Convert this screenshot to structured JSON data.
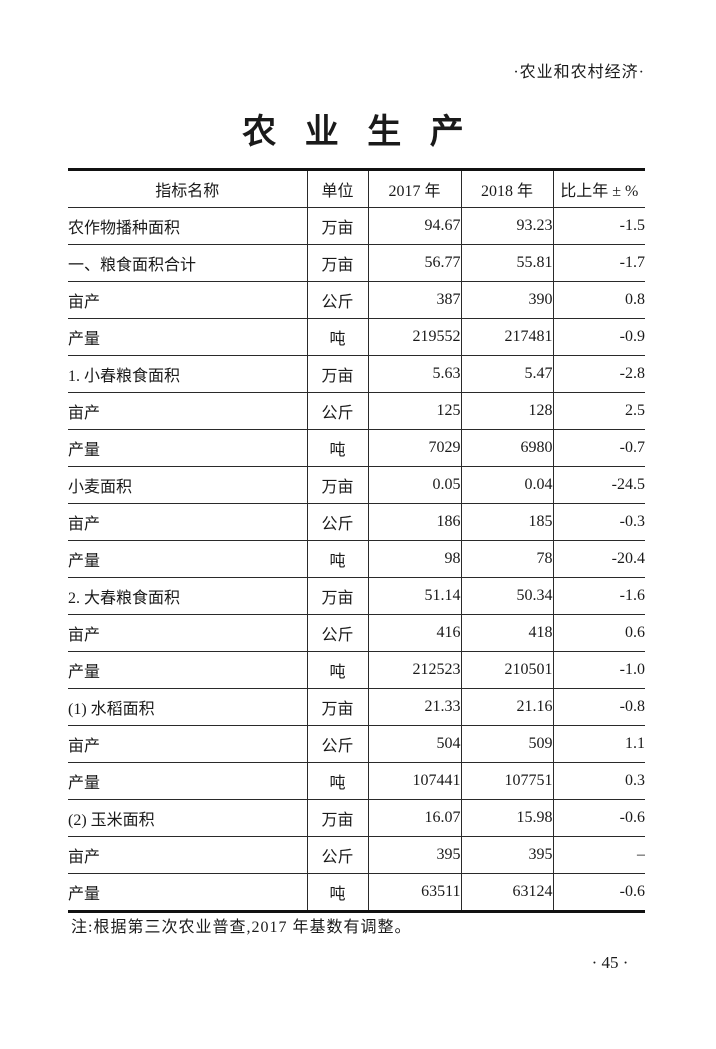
{
  "header": {
    "section_label": "·农业和农村经济·"
  },
  "title": "农 业 生 产",
  "table": {
    "columns": [
      "指标名称",
      "单位",
      "2017 年",
      "2018 年",
      "比上年 ± %"
    ],
    "rows": [
      {
        "indicator": "农作物播种面积",
        "indent": 0,
        "unit": "万亩",
        "y2017": "94.67",
        "y2018": "93.23",
        "change": "-1.5"
      },
      {
        "indicator": "一、粮食面积合计",
        "indent": 0,
        "unit": "万亩",
        "y2017": "56.77",
        "y2018": "55.81",
        "change": "-1.7"
      },
      {
        "indicator": "亩产",
        "indent": 2,
        "unit": "公斤",
        "y2017": "387",
        "y2018": "390",
        "change": "0.8"
      },
      {
        "indicator": "产量",
        "indent": 2,
        "unit": "吨",
        "y2017": "219552",
        "y2018": "217481",
        "change": "-0.9"
      },
      {
        "indicator": "1. 小春粮食面积",
        "indent": 1,
        "unit": "万亩",
        "y2017": "5.63",
        "y2018": "5.47",
        "change": "-2.8"
      },
      {
        "indicator": "亩产",
        "indent": 2,
        "unit": "公斤",
        "y2017": "125",
        "y2018": "128",
        "change": "2.5"
      },
      {
        "indicator": "产量",
        "indent": 2,
        "unit": "吨",
        "y2017": "7029",
        "y2018": "6980",
        "change": "-0.7"
      },
      {
        "indicator": "小麦面积",
        "indent": 3,
        "unit": "万亩",
        "y2017": "0.05",
        "y2018": "0.04",
        "change": "-24.5"
      },
      {
        "indicator": "亩产",
        "indent": 3,
        "unit": "公斤",
        "y2017": "186",
        "y2018": "185",
        "change": "-0.3"
      },
      {
        "indicator": "产量",
        "indent": 3,
        "unit": "吨",
        "y2017": "98",
        "y2018": "78",
        "change": "-20.4"
      },
      {
        "indicator": "2. 大春粮食面积",
        "indent": 1,
        "unit": "万亩",
        "y2017": "51.14",
        "y2018": "50.34",
        "change": "-1.6"
      },
      {
        "indicator": "亩产",
        "indent": 2,
        "unit": "公斤",
        "y2017": "416",
        "y2018": "418",
        "change": "0.6"
      },
      {
        "indicator": "产量",
        "indent": 2,
        "unit": "吨",
        "y2017": "212523",
        "y2018": "210501",
        "change": "-1.0"
      },
      {
        "indicator": "(1) 水稻面积",
        "indent": 3,
        "unit": "万亩",
        "y2017": "21.33",
        "y2018": "21.16",
        "change": "-0.8"
      },
      {
        "indicator": "亩产",
        "indent": 4,
        "unit": "公斤",
        "y2017": "504",
        "y2018": "509",
        "change": "1.1"
      },
      {
        "indicator": "产量",
        "indent": 4,
        "unit": "吨",
        "y2017": "107441",
        "y2018": "107751",
        "change": "0.3"
      },
      {
        "indicator": "(2) 玉米面积",
        "indent": 3,
        "unit": "万亩",
        "y2017": "16.07",
        "y2018": "15.98",
        "change": "-0.6"
      },
      {
        "indicator": "亩产",
        "indent": 4,
        "unit": "公斤",
        "y2017": "395",
        "y2018": "395",
        "change": "–"
      },
      {
        "indicator": "产量",
        "indent": 4,
        "unit": "吨",
        "y2017": "63511",
        "y2018": "63124",
        "change": "-0.6"
      }
    ]
  },
  "note": "注:根据第三次农业普查,2017 年基数有调整。",
  "page_number": "· 45 ·"
}
